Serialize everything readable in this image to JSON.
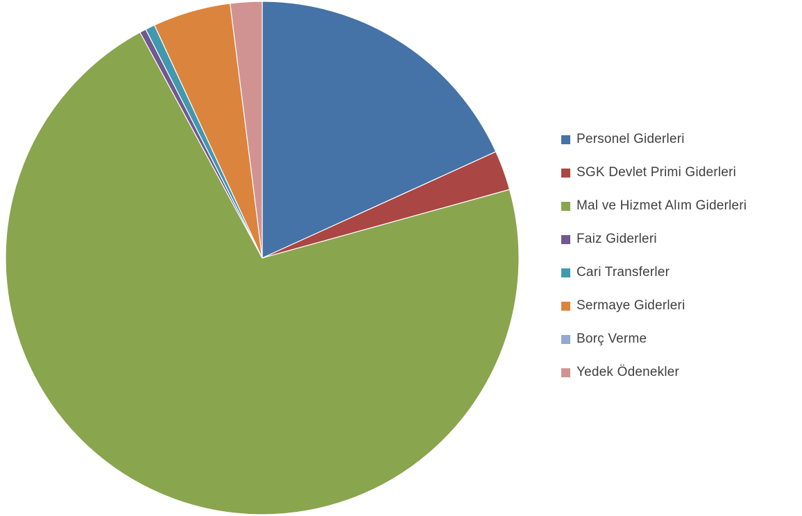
{
  "chart_data": {
    "type": "pie",
    "title": "",
    "legend_position": "right",
    "start_angle": "12 o'clock",
    "direction": "clockwise",
    "series": [
      {
        "categories": [
          "Personel Giderleri",
          "SGK Devlet Primi Giderleri",
          "Mal ve Hizmet Alım Giderleri",
          "Faiz Giderleri",
          "Cari Transferler",
          "Sermaye Giderleri",
          "Borç Verme",
          "Yedek Ödenekler"
        ],
        "values": [
          18.2,
          2.5,
          71.4,
          0.4,
          0.6,
          4.9,
          0.0,
          2.0
        ],
        "colors": [
          "#4572A7",
          "#AA4643",
          "#89A54E",
          "#71588F",
          "#4198AF",
          "#DB843D",
          "#93A9CF",
          "#D19392"
        ]
      }
    ]
  }
}
